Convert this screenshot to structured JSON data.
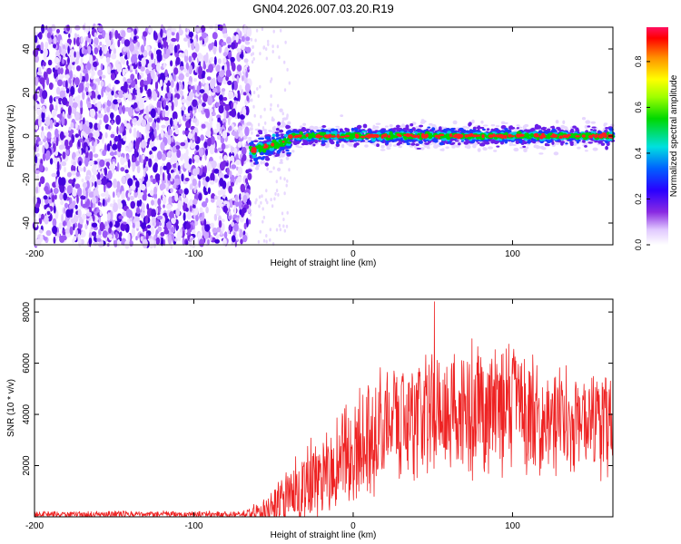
{
  "title": "GN04.2026.007.03.20.R19",
  "chart_data": [
    {
      "type": "heatmap",
      "xlabel": "Height of straight line (km)",
      "ylabel": "Frequency (Hz)",
      "xlim": [
        -200,
        163
      ],
      "ylim": [
        -50,
        50
      ],
      "xticks": [
        -200,
        -100,
        0,
        100
      ],
      "yticks": [
        -40,
        -20,
        0,
        20,
        40
      ],
      "colorbar": {
        "label": "Normalized spectral amplitude",
        "ticks": [
          0.0,
          0.2,
          0.4,
          0.6,
          0.8
        ],
        "range": [
          0,
          0.95
        ]
      },
      "features": {
        "noise_region_x": [
          -200,
          -65
        ],
        "transition_x": [
          -65,
          -40
        ],
        "signal_center_hz": 0,
        "signal_region_x": [
          -40,
          163
        ]
      }
    },
    {
      "type": "line",
      "xlabel": "Height of straight line (km)",
      "ylabel": "SNR (10 * v/v)",
      "xlim": [
        -200,
        163
      ],
      "ylim": [
        0,
        8500
      ],
      "xticks": [
        -200,
        -100,
        0,
        100
      ],
      "yticks": [
        2000,
        4000,
        6000,
        8000
      ],
      "color": "#ee2222",
      "envelope": {
        "x": [
          -200,
          -70,
          -55,
          -45,
          -35,
          -25,
          -10,
          0,
          20,
          40,
          60,
          80,
          100,
          120,
          140,
          163
        ],
        "mean": [
          100,
          100,
          300,
          600,
          900,
          1500,
          2000,
          2500,
          3500,
          4000,
          4300,
          4200,
          4000,
          3800,
          3700,
          3600
        ],
        "spread": [
          120,
          120,
          500,
          900,
          1300,
          1600,
          1900,
          2000,
          2200,
          2300,
          2500,
          2400,
          2300,
          2200,
          2100,
          2000
        ]
      },
      "peak": {
        "x": 51,
        "y": 8400
      }
    }
  ]
}
